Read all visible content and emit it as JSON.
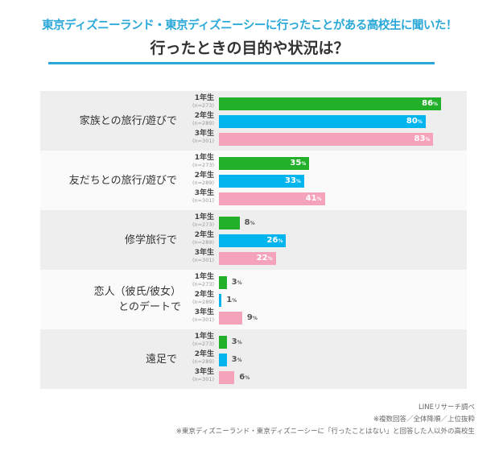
{
  "header": {
    "title": "東京ディズニーランド・東京ディズニーシーに行ったことがある高校生に聞いた！",
    "subtitle": "行ったときの目的や状況は？"
  },
  "chart_data": {
    "type": "bar",
    "orientation": "horizontal",
    "title": "行ったときの目的や状況は？",
    "categories": [
      "家族との旅行/遊びで",
      "友だちとの旅行/遊びで",
      "修学旅行で",
      "恋人（彼氏/彼女）とのデートで",
      "遠足で"
    ],
    "series": [
      {
        "name": "1年生",
        "n": "(n=273)",
        "color": "#22b02a",
        "values": [
          86,
          35,
          8,
          3,
          3
        ]
      },
      {
        "name": "2年生",
        "n": "(n=289)",
        "color": "#00b4ee",
        "values": [
          80,
          33,
          26,
          1,
          3
        ]
      },
      {
        "name": "3年生",
        "n": "(n=301)",
        "color": "#f5a3bb",
        "values": [
          83,
          41,
          22,
          9,
          6
        ]
      }
    ],
    "unit": "%",
    "xlim": [
      0,
      100
    ]
  },
  "notes": [
    "LINEリサーチ調べ",
    "※複数回答／全体降順／上位抜粋",
    "※東京ディズニーランド・東京ディズニーシーに「行ったことはない」と回答した人以外の高校生"
  ]
}
